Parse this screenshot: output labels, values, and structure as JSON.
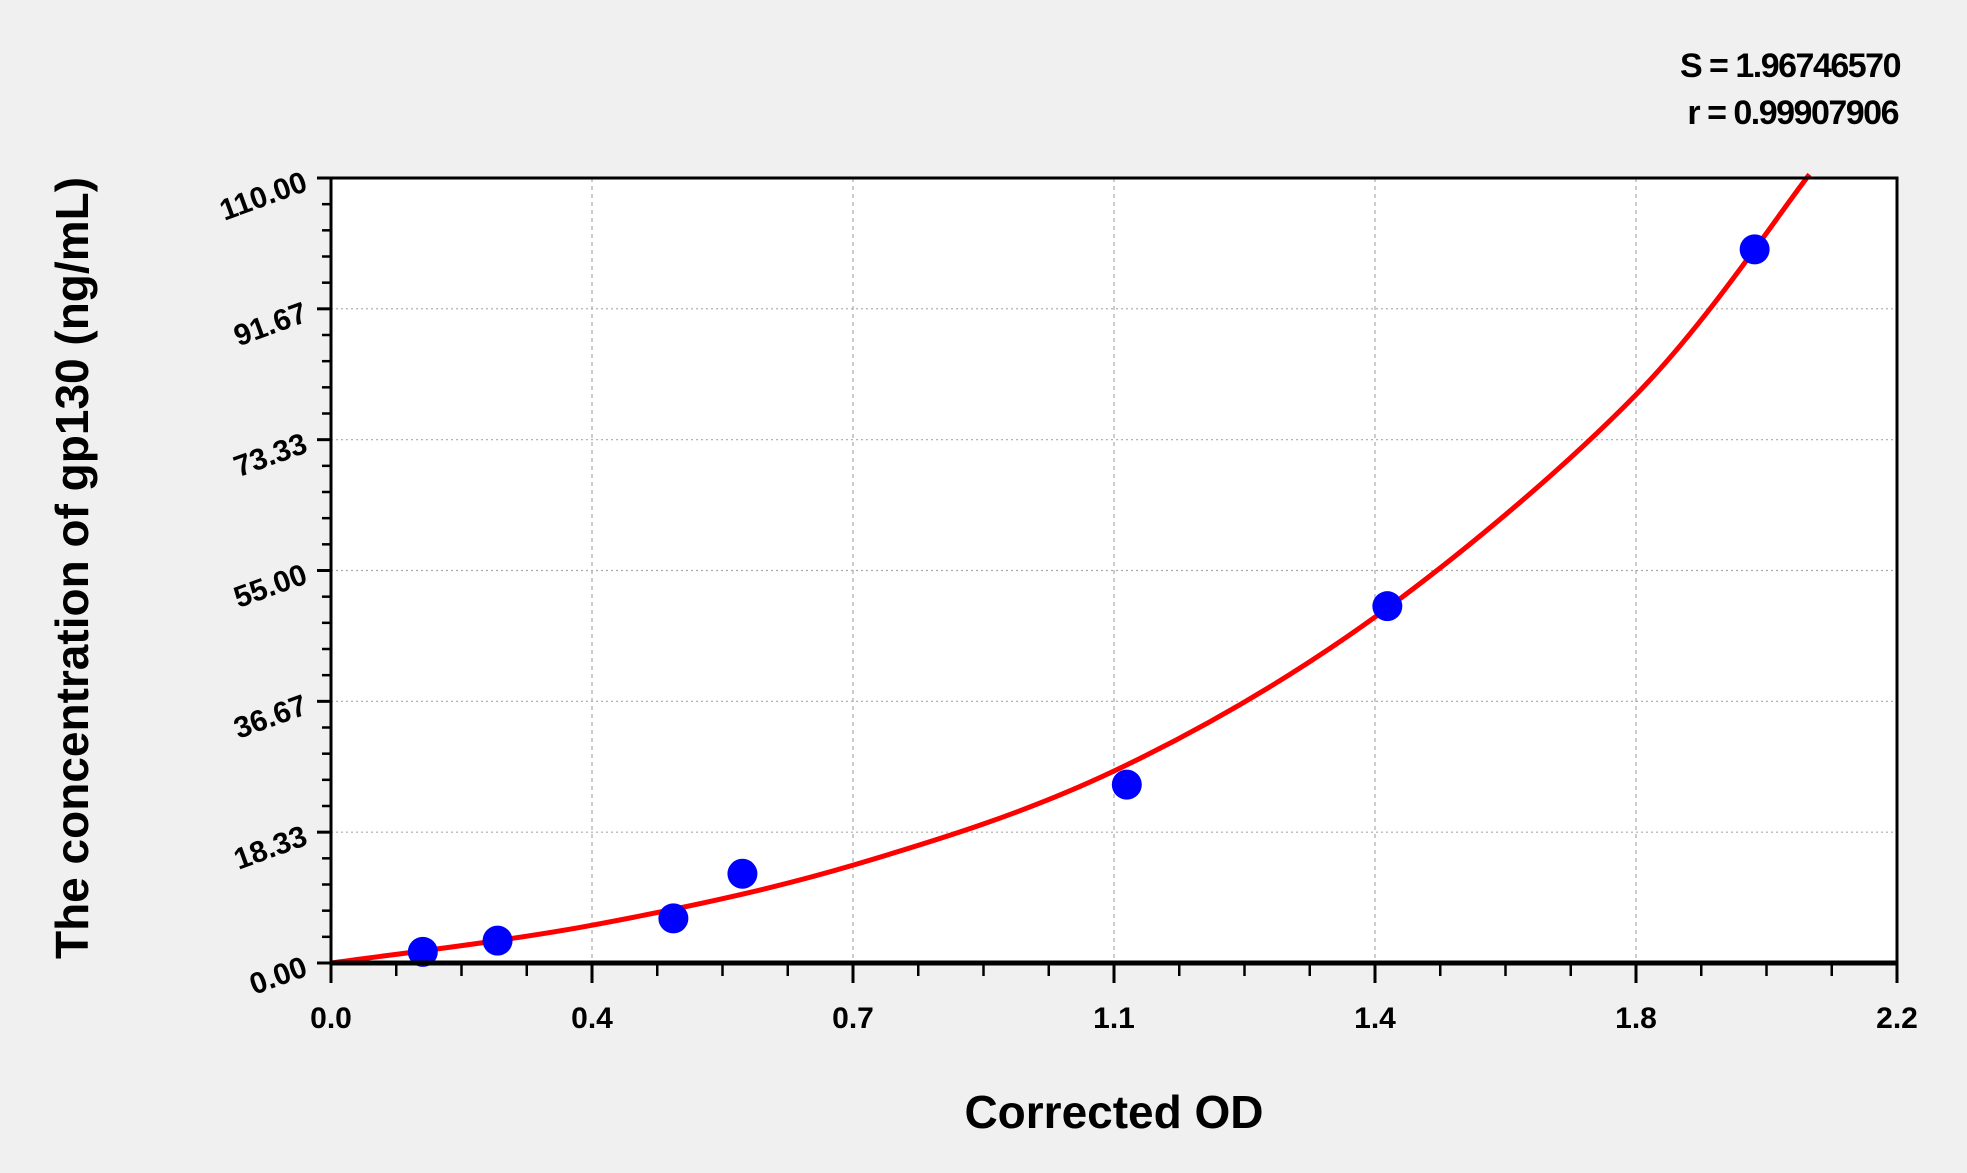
{
  "chart_data": {
    "type": "scatter",
    "title": "",
    "xlabel": "Corrected OD",
    "ylabel": "The concentration of gp130 (ng/mL)",
    "xlim": [
      0,
      2.2
    ],
    "ylim": [
      0,
      110
    ],
    "x_ticks": [
      "0.0",
      "0.4",
      "0.7",
      "1.1",
      "1.4",
      "1.8",
      "2.2"
    ],
    "y_ticks": [
      "0.00",
      "18.33",
      "36.67",
      "55.00",
      "73.33",
      "91.67",
      "110.00"
    ],
    "grid": true,
    "stats": {
      "s": "S = 1.96746570",
      "r": "r = 0.99907906"
    },
    "points": {
      "x": [
        0.129,
        0.234,
        0.481,
        0.578,
        1.118,
        1.484,
        2.0
      ],
      "y": [
        1.56,
        3.13,
        6.25,
        12.5,
        25,
        50,
        100
      ]
    },
    "fit_curve": {
      "x": [
        0,
        0.367,
        0.733,
        1.1,
        1.467,
        1.833,
        2.077
      ],
      "y": [
        0,
        5.3,
        13.7,
        26.9,
        48.5,
        79.6,
        110.5
      ]
    },
    "colors": {
      "points": "#0000ff",
      "curve": "#ff0000",
      "background": "#f0f0f0",
      "plot": "#ffffff"
    }
  }
}
